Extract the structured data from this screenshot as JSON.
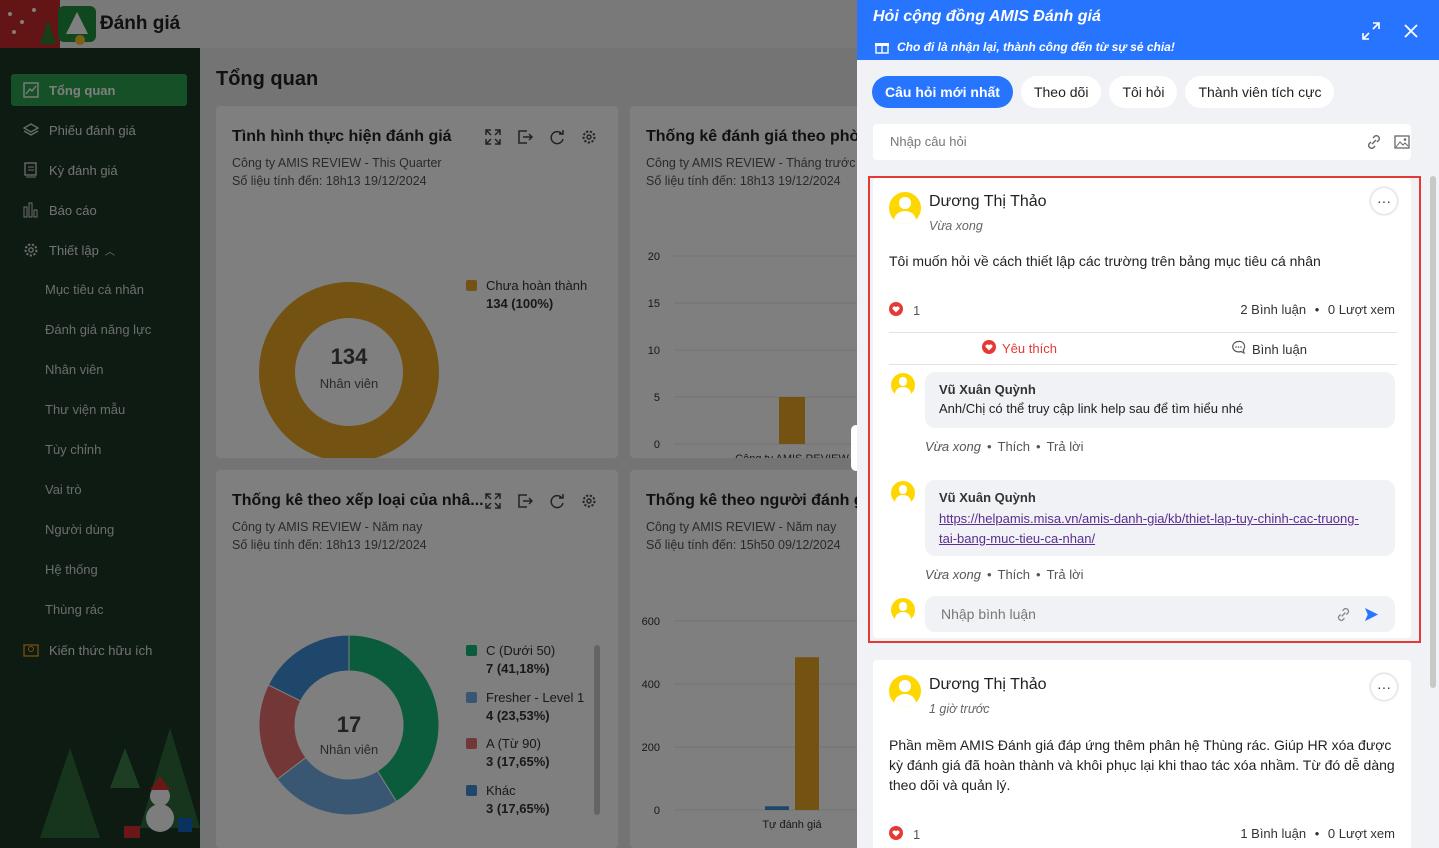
{
  "header": {
    "app_title": "Đánh giá"
  },
  "sidebar": {
    "items": [
      {
        "label": "Tổng quan",
        "icon": "trend-chart-icon"
      },
      {
        "label": "Phiếu đánh giá",
        "icon": "layers-icon"
      },
      {
        "label": "Kỳ đánh giá",
        "icon": "calendar-list-icon"
      },
      {
        "label": "Báo cáo",
        "icon": "bar-report-icon"
      },
      {
        "label": "Thiết lập",
        "icon": "gear-icon"
      }
    ],
    "sub_items": [
      "Mục tiêu cá nhân",
      "Đánh giá năng lực",
      "Nhân viên",
      "Thư viện mẫu",
      "Tùy chỉnh",
      "Vai trò",
      "Người dùng",
      "Hệ thống",
      "Thùng rác"
    ],
    "extra": {
      "label": "Kiến thức hữu ích",
      "icon": "bulb-icon"
    }
  },
  "main": {
    "page_title": "Tổng quan",
    "cards": [
      {
        "title": "Tình hình thực hiện đánh giá",
        "subtitle": "Công ty AMIS REVIEW - This Quarter",
        "updated": "Số liệu tính đến: 18h13 19/12/2024"
      },
      {
        "title": "Thống kê đánh giá theo phòn",
        "subtitle": "Công ty AMIS REVIEW - Tháng trước",
        "updated": "Số liệu tính đến: 18h13 19/12/2024"
      },
      {
        "title": "Thống kê theo xếp loại của nhâ...",
        "subtitle": "Công ty AMIS REVIEW - Năm nay",
        "updated": "Số liệu tính đến: 18h13 19/12/2024"
      },
      {
        "title": "Thống kê theo người đánh giá",
        "subtitle": "Công ty AMIS REVIEW - Năm nay",
        "updated": "Số liệu tính đến: 15h50 09/12/2024"
      }
    ]
  },
  "chart_data": [
    {
      "type": "pie",
      "center_value": "134",
      "center_label": "Nhân viên",
      "slices": [
        {
          "label": "Chưa hoàn thành",
          "value_text": "134 (100%)",
          "value": 100,
          "color": "#e8a524"
        }
      ]
    },
    {
      "type": "bar",
      "categories": [
        "Công ty AMIS REVIEW"
      ],
      "values": [
        5
      ],
      "ylim": [
        0,
        20
      ],
      "yticks": [
        "20",
        "15",
        "10",
        "5",
        "0"
      ],
      "color": "#e8a524"
    },
    {
      "type": "pie",
      "center_value": "17",
      "center_label": "Nhân viên",
      "slices": [
        {
          "label": "C (Dưới 50)",
          "value_text": "7 (41,18%)",
          "value": 41.18,
          "color": "#14b87a"
        },
        {
          "label": "Fresher - Level 1",
          "value_text": "4 (23,53%)",
          "value": 23.53,
          "color": "#73aee6"
        },
        {
          "label": "A (Từ 90)",
          "value_text": "3 (17,65%)",
          "value": 17.65,
          "color": "#e66f6f"
        },
        {
          "label": "Khác",
          "value_text": "3 (17,65%)",
          "value": 17.65,
          "color": "#3d8fd6"
        }
      ]
    },
    {
      "type": "bar",
      "categories": [
        "Tự đánh giá"
      ],
      "series": [
        {
          "values": [
            12
          ],
          "color": "#3d8fd6"
        },
        {
          "values": [
            485
          ],
          "color": "#e8a524"
        }
      ],
      "ylim": [
        0,
        600
      ],
      "yticks": [
        "600",
        "400",
        "200",
        "0"
      ]
    }
  ],
  "panel": {
    "title": "Hỏi cộng đồng AMIS Đánh giá",
    "slogan": "Cho đi là nhận lại, thành công đến từ sự sẻ chia!",
    "tabs": [
      "Câu hỏi mới nhất",
      "Theo dõi",
      "Tôi hỏi",
      "Thành viên tích cực"
    ],
    "ask_placeholder": "Nhập câu hỏi",
    "posts": [
      {
        "author": "Dương Thị Thảo",
        "time": "Vừa xong",
        "text": "Tôi muốn hỏi về cách thiết lập các trường trên bảng mục tiêu cá nhân",
        "likes": "1",
        "comments": "2 Bình luận",
        "views": "0 Lượt xem",
        "like_label": "Yêu thích",
        "comment_label": "Bình luận",
        "replies": [
          {
            "name": "Vũ Xuân Quỳnh",
            "text": "Anh/Chị có thể truy cập link help sau để tìm hiểu nhé",
            "time": "Vừa xong",
            "like": "Thích",
            "reply": "Trả lời"
          },
          {
            "name": "Vũ Xuân Quỳnh",
            "link_line1": "https://helpamis.misa.vn/amis-danh-gia/kb/thiet-lap-tuy-chinh-cac-truong-",
            "link_line2": "tai-bang-muc-tieu-ca-nhan/",
            "time": "Vừa xong",
            "like": "Thích",
            "reply": "Trả lời"
          }
        ],
        "comment_placeholder": "Nhập bình luận"
      },
      {
        "author": "Dương Thị Thảo",
        "time": "1 giờ trước",
        "text_line1": "Phần mềm AMIS Đánh giá đáp ứng thêm phân hệ Thùng rác. Giúp HR xóa được",
        "text_line2": "kỳ đánh giá đã hoàn thành và khôi phục lại khi thao tác xóa nhầm. Từ đó dễ dàng",
        "text_line3": "theo dõi và quản lý.",
        "likes": "1",
        "comments": "1 Bình luận",
        "views": "0 Lượt xem"
      }
    ]
  },
  "colors": {
    "accent": "#2775ff",
    "sidebar_active": "#2aa04c",
    "highlight": "#e53935",
    "like_red": "#e53935"
  }
}
